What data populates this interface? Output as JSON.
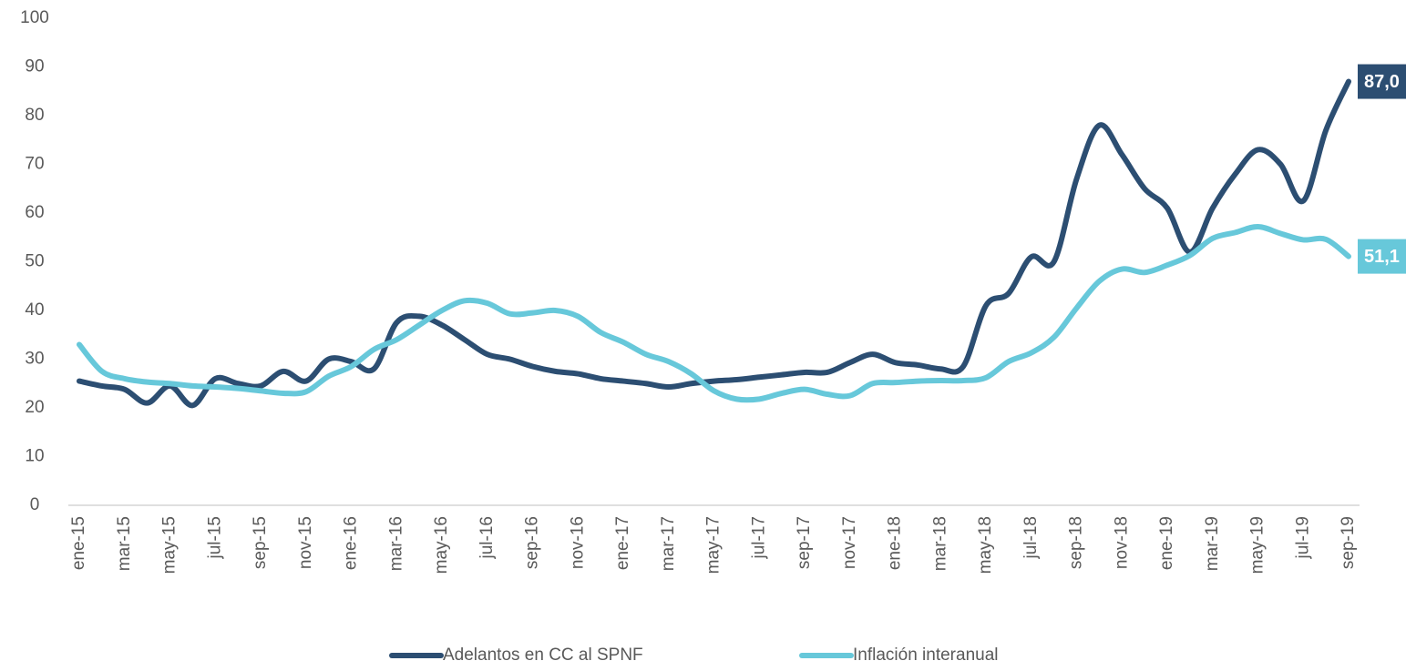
{
  "chart_data": {
    "type": "line",
    "categories": [
      "ene-15",
      null,
      "mar-15",
      null,
      "may-15",
      null,
      "jul-15",
      null,
      "sep-15",
      null,
      "nov-15",
      null,
      "ene-16",
      null,
      "mar-16",
      null,
      "may-16",
      null,
      "jul-16",
      null,
      "sep-16",
      null,
      "nov-16",
      null,
      "ene-17",
      null,
      "mar-17",
      null,
      "may-17",
      null,
      "jul-17",
      null,
      "sep-17",
      null,
      "nov-17",
      null,
      "ene-18",
      null,
      "mar-18",
      null,
      "may-18",
      null,
      "jul-18",
      null,
      "sep-18",
      null,
      "nov-18",
      null,
      "ene-19",
      null,
      "mar-19",
      null,
      "may-19",
      null,
      "jul-19",
      null,
      "sep-19"
    ],
    "series": [
      {
        "name": "Adelantos en CC al SPNF",
        "color": "#2c4e72",
        "values": [
          25.5,
          24.5,
          23.8,
          21,
          24.5,
          20.5,
          26,
          25,
          24.5,
          27.5,
          25.5,
          30,
          29.5,
          28,
          37.5,
          38.8,
          37,
          34,
          31,
          30,
          28.5,
          27.5,
          27,
          26,
          25.5,
          25,
          24.3,
          25,
          25.5,
          25.8,
          26.3,
          26.8,
          27.3,
          27.3,
          29.3,
          31,
          29.3,
          28.8,
          28,
          28.5,
          41,
          43.5,
          51,
          50,
          67,
          78,
          72,
          65,
          61,
          52,
          61,
          68,
          73,
          70,
          62.5,
          77,
          87
        ],
        "value_labels": [
          null,
          null,
          null,
          null,
          null,
          null,
          null,
          null,
          null,
          null,
          null,
          null,
          null,
          null,
          null,
          null,
          null,
          null,
          null,
          null,
          null,
          null,
          null,
          null,
          null,
          null,
          null,
          null,
          null,
          null,
          null,
          null,
          null,
          null,
          null,
          null,
          null,
          null,
          null,
          null,
          null,
          null,
          null,
          null,
          null,
          null,
          null,
          null,
          null,
          null,
          null,
          null,
          null,
          null,
          null,
          null,
          "87,0"
        ]
      },
      {
        "name": "Inflación interanual",
        "color": "#67c8da",
        "values": [
          33,
          27.5,
          26,
          25.3,
          25,
          24.5,
          24.3,
          24,
          23.5,
          23,
          23.3,
          26.5,
          28.5,
          32,
          34,
          37,
          40,
          42,
          41.5,
          39.3,
          39.5,
          40,
          38.8,
          35.5,
          33.5,
          31,
          29.5,
          27,
          23.5,
          21.8,
          21.8,
          23,
          23.8,
          22.8,
          22.5,
          25,
          25.2,
          25.5,
          25.6,
          25.6,
          26.2,
          29.5,
          31.3,
          34.5,
          40.5,
          46,
          48.5,
          47.8,
          49.3,
          51.3,
          54.8,
          56,
          57.2,
          55.8,
          54.5,
          54.6,
          51.1
        ],
        "value_labels": [
          null,
          null,
          null,
          null,
          null,
          null,
          null,
          null,
          null,
          null,
          null,
          null,
          null,
          null,
          null,
          null,
          null,
          null,
          null,
          null,
          null,
          null,
          null,
          null,
          null,
          null,
          null,
          null,
          null,
          null,
          null,
          null,
          null,
          null,
          null,
          null,
          null,
          null,
          null,
          null,
          null,
          null,
          null,
          null,
          null,
          null,
          null,
          null,
          null,
          null,
          null,
          null,
          null,
          null,
          null,
          null,
          "51,1"
        ]
      }
    ],
    "ylim": [
      0,
      100
    ],
    "yticks": [
      0,
      10,
      20,
      30,
      40,
      50,
      60,
      70,
      80,
      90,
      100
    ],
    "grid": false,
    "legend": "bottom"
  }
}
